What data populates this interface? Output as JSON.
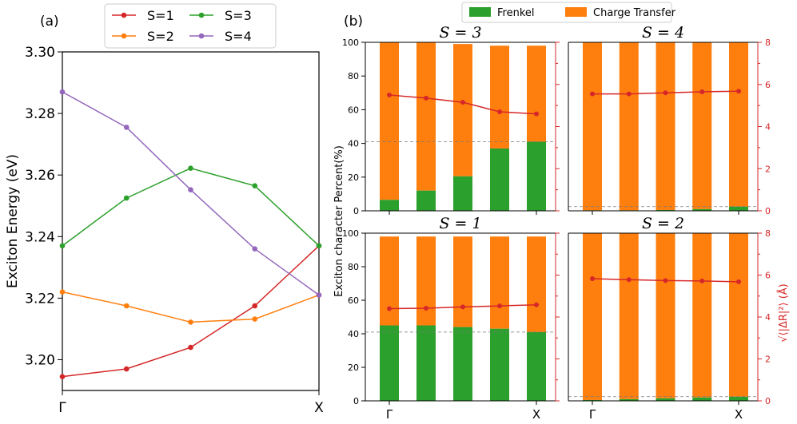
{
  "colors": {
    "s1": "#d62728",
    "s2": "#ff7f0e",
    "s3": "#2ca02c",
    "s4": "#9467bd",
    "frenkel": "#2ca02c",
    "ct": "#ff7f0e",
    "radius": "#d62728",
    "axis": "#000000"
  },
  "chart_data": [
    {
      "type": "line",
      "panel_label": "(a)",
      "ylabel": "Exciton Energy (eV)",
      "x_ticks": [
        "Γ",
        "X"
      ],
      "ylim": [
        3.19,
        3.3
      ],
      "y_ticks": [
        "3.20",
        "3.22",
        "3.24",
        "3.26",
        "3.28",
        "3.30"
      ],
      "legend_position": "top-center",
      "series": [
        {
          "name": "S=1",
          "values": [
            3.1945,
            3.197,
            3.204,
            3.2175,
            3.237
          ]
        },
        {
          "name": "S=2",
          "values": [
            3.222,
            3.2175,
            3.2122,
            3.2132,
            3.221
          ]
        },
        {
          "name": "S=3",
          "values": [
            3.237,
            3.2525,
            3.2622,
            3.2565,
            3.237
          ]
        },
        {
          "name": "S=4",
          "values": [
            3.287,
            3.2755,
            3.2552,
            3.236,
            3.221
          ]
        }
      ]
    },
    {
      "type": "bar",
      "panel_label": "(b)",
      "legend": [
        "Frenkel",
        "Charge Transfer"
      ],
      "ylabel": "Exciton character Percent(%)",
      "ylabel2": "√⟨|ΔR|²⟩ (Å)",
      "ylim": [
        0,
        100
      ],
      "ylim2": [
        0,
        8
      ],
      "y_ticks": [
        "0",
        "20",
        "40",
        "60",
        "80",
        "100"
      ],
      "y2_ticks": [
        "0",
        "2",
        "4",
        "6",
        "8"
      ],
      "x_ticks": [
        "Γ",
        "X"
      ],
      "panels": [
        {
          "title": "S = 3",
          "frenkel": [
            6.5,
            12,
            20.5,
            37,
            41
          ],
          "total": [
            100,
            100,
            99,
            98,
            98
          ],
          "radius": [
            5.5,
            5.35,
            5.15,
            4.7,
            4.6
          ],
          "dashed": 41
        },
        {
          "title": "S = 4",
          "frenkel": [
            0.3,
            0.3,
            0.5,
            1,
            2.5
          ],
          "total": [
            100,
            100,
            100,
            100,
            100
          ],
          "radius": [
            5.55,
            5.55,
            5.6,
            5.65,
            5.68
          ],
          "dashed": 2.5
        },
        {
          "title": "S = 1",
          "frenkel": [
            45,
            45,
            44,
            43,
            41
          ],
          "total": [
            98,
            98,
            98,
            98,
            98
          ],
          "radius": [
            4.4,
            4.42,
            4.48,
            4.53,
            4.58
          ],
          "dashed": 41
        },
        {
          "title": "S = 2",
          "frenkel": [
            0.5,
            1,
            1.5,
            2,
            2.5
          ],
          "total": [
            100,
            100,
            100,
            100,
            100
          ],
          "radius": [
            5.83,
            5.78,
            5.74,
            5.72,
            5.68
          ],
          "dashed": 2.5
        }
      ]
    }
  ]
}
